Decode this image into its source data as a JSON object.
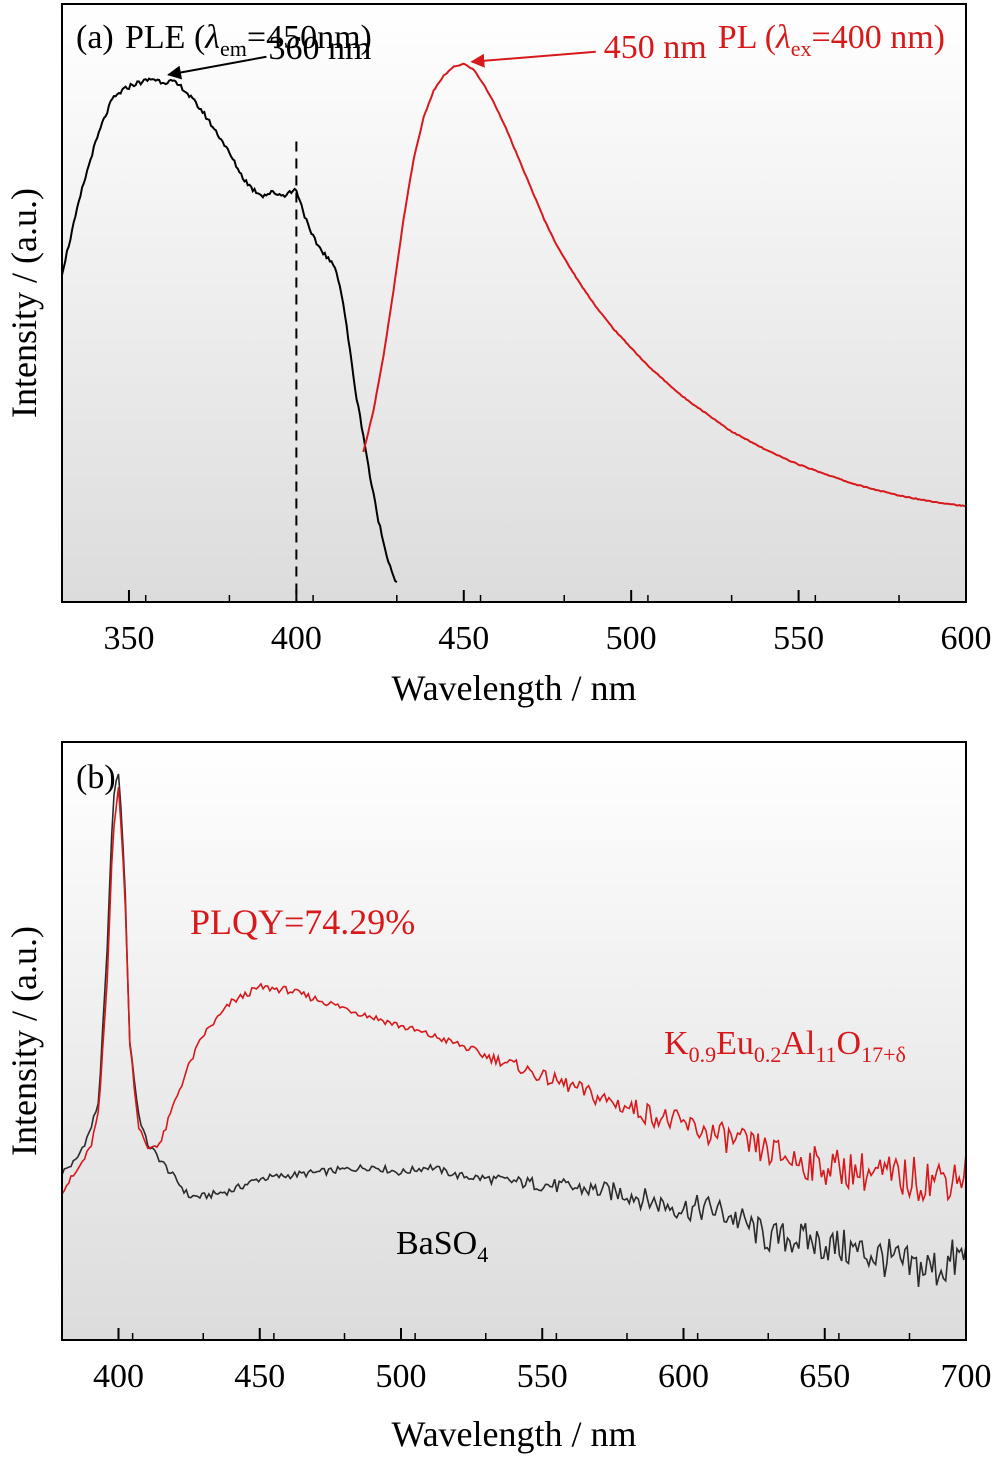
{
  "chart_data": [
    {
      "type": "line",
      "panel_label": "(a)",
      "xlabel": "Wavelength / nm",
      "ylabel": "Intensity / (a.u.)",
      "xlim": [
        330,
        600
      ],
      "ylim": [
        0,
        1
      ],
      "xticks": [
        350,
        400,
        450,
        500,
        550,
        600
      ],
      "grid": false,
      "legend": "none",
      "dashed_line_x": 400,
      "series": [
        {
          "name": "PLE (λem=450nm)",
          "name_parts": {
            "pre": "PLE (",
            "sym": "λ",
            "sub": "em",
            "post": "=450nm)"
          },
          "color": "#000000",
          "x": [
            330,
            333,
            336,
            339,
            342,
            345,
            348,
            351,
            354,
            357,
            360,
            363,
            366,
            369,
            372,
            375,
            378,
            381,
            384,
            387,
            390,
            393,
            396,
            398,
            400,
            402,
            404,
            406,
            408,
            410,
            412,
            414,
            416,
            418,
            420,
            422,
            424,
            426,
            428,
            430
          ],
          "y": [
            0.55,
            0.62,
            0.69,
            0.75,
            0.8,
            0.84,
            0.855,
            0.865,
            0.87,
            0.875,
            0.87,
            0.87,
            0.86,
            0.84,
            0.82,
            0.795,
            0.77,
            0.74,
            0.71,
            0.69,
            0.68,
            0.685,
            0.68,
            0.685,
            0.69,
            0.655,
            0.62,
            0.6,
            0.585,
            0.57,
            0.555,
            0.5,
            0.42,
            0.34,
            0.28,
            0.21,
            0.15,
            0.1,
            0.06,
            0.03
          ]
        },
        {
          "name": "PL (λex=400 nm)",
          "name_parts": {
            "pre": "PL (",
            "sym": "λ",
            "sub": "ex",
            "post": "=400 nm)"
          },
          "color": "#d7191c",
          "x": [
            420,
            423,
            426,
            429,
            432,
            435,
            438,
            441,
            444,
            447,
            450,
            453,
            456,
            459,
            462,
            465,
            468,
            471,
            474,
            477,
            480,
            485,
            490,
            495,
            500,
            505,
            510,
            515,
            520,
            525,
            530,
            535,
            540,
            545,
            550,
            555,
            560,
            565,
            570,
            575,
            580,
            585,
            590,
            595,
            600
          ],
          "y": [
            0.25,
            0.32,
            0.41,
            0.52,
            0.64,
            0.74,
            0.81,
            0.855,
            0.88,
            0.895,
            0.9,
            0.89,
            0.865,
            0.835,
            0.8,
            0.76,
            0.72,
            0.68,
            0.64,
            0.605,
            0.575,
            0.53,
            0.49,
            0.455,
            0.425,
            0.395,
            0.37,
            0.345,
            0.325,
            0.305,
            0.285,
            0.27,
            0.255,
            0.242,
            0.23,
            0.22,
            0.21,
            0.2,
            0.192,
            0.185,
            0.178,
            0.173,
            0.168,
            0.164,
            0.16
          ]
        }
      ],
      "annotations": [
        {
          "text": "360 nm",
          "color": "#000000",
          "x": 360,
          "y": 0.875
        },
        {
          "text": "450 nm",
          "color": "#d7191c",
          "x": 450,
          "y": 0.9
        }
      ]
    },
    {
      "type": "line",
      "panel_label": "(b)",
      "xlabel": "Wavelength / nm",
      "ylabel": "Intensity / (a.u.)",
      "xlim": [
        380,
        700
      ],
      "ylim": [
        0,
        1
      ],
      "xticks": [
        400,
        450,
        500,
        550,
        600,
        650,
        700
      ],
      "grid": false,
      "legend": "none",
      "series": [
        {
          "name": "BaSO4",
          "name_parts": {
            "pre": "BaSO",
            "sub": "4"
          },
          "color": "#2b2b2b",
          "x": [
            380,
            385,
            390,
            393,
            396,
            398,
            400,
            402,
            404,
            407,
            410,
            415,
            420,
            425,
            430,
            440,
            450,
            460,
            470,
            480,
            490,
            500,
            510,
            520,
            530,
            540,
            550,
            560,
            570,
            580,
            590,
            600,
            610,
            620,
            630,
            640,
            650,
            660,
            670,
            680,
            690,
            700
          ],
          "y": [
            0.28,
            0.3,
            0.35,
            0.4,
            0.65,
            0.9,
            0.95,
            0.8,
            0.5,
            0.38,
            0.33,
            0.3,
            0.27,
            0.24,
            0.24,
            0.25,
            0.27,
            0.275,
            0.28,
            0.285,
            0.29,
            0.28,
            0.29,
            0.275,
            0.27,
            0.265,
            0.26,
            0.255,
            0.25,
            0.245,
            0.23,
            0.22,
            0.22,
            0.2,
            0.17,
            0.17,
            0.16,
            0.15,
            0.14,
            0.12,
            0.12,
            0.14
          ]
        },
        {
          "name": "K0.9Eu0.2Al11O17+δ",
          "name_parts": {
            "pre": "K",
            "sub1": "0.9",
            "mid1": "Eu",
            "sub2": "0.2",
            "mid2": "Al",
            "sub3": "11",
            "mid3": "O",
            "sub4": "17+δ"
          },
          "color": "#d7191c",
          "x": [
            380,
            385,
            390,
            393,
            396,
            398,
            400,
            402,
            404,
            407,
            410,
            415,
            420,
            425,
            430,
            440,
            450,
            460,
            470,
            480,
            490,
            500,
            510,
            520,
            530,
            540,
            550,
            560,
            570,
            580,
            590,
            600,
            610,
            620,
            630,
            640,
            650,
            660,
            670,
            680,
            690,
            700
          ],
          "y": [
            0.25,
            0.28,
            0.32,
            0.38,
            0.6,
            0.85,
            0.92,
            0.78,
            0.5,
            0.36,
            0.32,
            0.33,
            0.4,
            0.46,
            0.51,
            0.565,
            0.59,
            0.585,
            0.57,
            0.555,
            0.54,
            0.525,
            0.51,
            0.495,
            0.475,
            0.46,
            0.44,
            0.425,
            0.405,
            0.39,
            0.375,
            0.36,
            0.345,
            0.33,
            0.315,
            0.3,
            0.29,
            0.285,
            0.275,
            0.27,
            0.27,
            0.28
          ]
        }
      ],
      "annotations": [
        {
          "text": "PLQY=74.29%",
          "color": "#d7191c"
        }
      ]
    }
  ]
}
